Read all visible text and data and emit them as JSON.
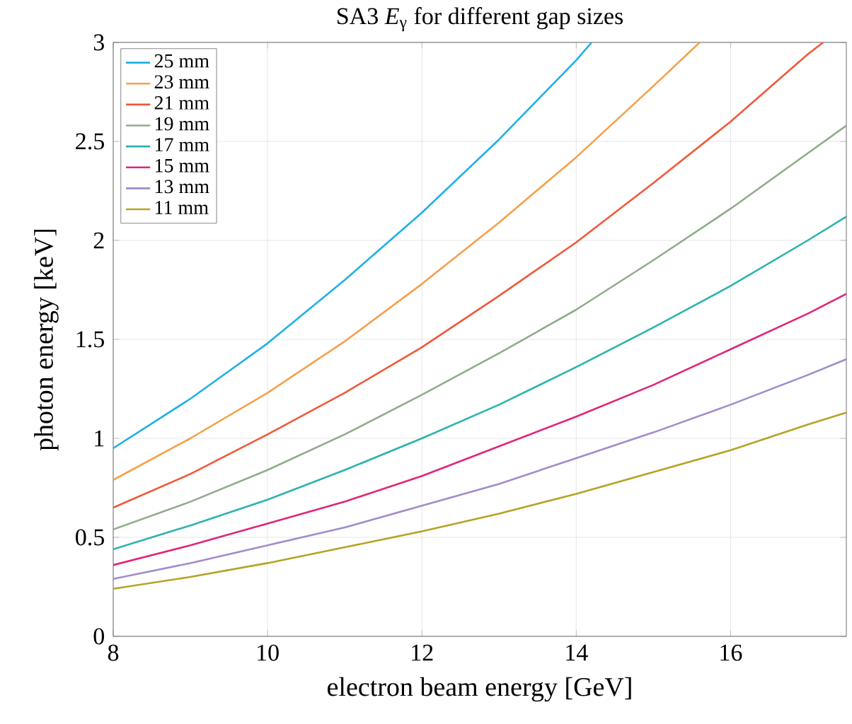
{
  "chart_data": {
    "type": "line",
    "title": "SA3 *E*$_{γ}$ for different gap sizes",
    "xlabel": "electron beam energy [GeV]",
    "ylabel": "photon energy [keV]",
    "xlim": [
      8,
      17.5
    ],
    "xticks": [
      8,
      10,
      12,
      14,
      16
    ],
    "ylim": [
      0,
      3
    ],
    "yticks": [
      0,
      0.5,
      1,
      1.5,
      2,
      2.5,
      3
    ],
    "grid": true,
    "legend": "top left",
    "marker": "none",
    "line_style": "solid",
    "series": [
      {
        "name": "25 mm",
        "color": "#1fb0e6",
        "x": [
          8,
          9,
          10,
          11,
          12,
          13,
          14,
          14.2
        ],
        "values": [
          0.95,
          1.2,
          1.48,
          1.8,
          2.14,
          2.51,
          2.91,
          3.0
        ]
      },
      {
        "name": "23 mm",
        "color": "#f5a04a",
        "x": [
          8,
          9,
          10,
          11,
          12,
          13,
          14,
          15,
          15.6
        ],
        "values": [
          0.79,
          1.0,
          1.23,
          1.49,
          1.78,
          2.09,
          2.42,
          2.78,
          3.0
        ]
      },
      {
        "name": "21 mm",
        "color": "#ee5a3a",
        "x": [
          8,
          9,
          10,
          11,
          12,
          13,
          14,
          15,
          16,
          17,
          17.2
        ],
        "values": [
          0.65,
          0.82,
          1.02,
          1.23,
          1.46,
          1.72,
          1.99,
          2.29,
          2.6,
          2.94,
          3.0
        ]
      },
      {
        "name": "19 mm",
        "color": "#8fad8a",
        "x": [
          8,
          9,
          10,
          11,
          12,
          13,
          14,
          15,
          16,
          17,
          17.5
        ],
        "values": [
          0.54,
          0.68,
          0.84,
          1.02,
          1.22,
          1.43,
          1.65,
          1.9,
          2.16,
          2.44,
          2.58
        ]
      },
      {
        "name": "17 mm",
        "color": "#2cb3ad",
        "x": [
          8,
          9,
          10,
          11,
          12,
          13,
          14,
          15,
          16,
          17,
          17.5
        ],
        "values": [
          0.44,
          0.56,
          0.69,
          0.84,
          1.0,
          1.17,
          1.36,
          1.56,
          1.77,
          2.0,
          2.12
        ]
      },
      {
        "name": "15 mm",
        "color": "#e0257a",
        "x": [
          8,
          9,
          10,
          11,
          12,
          13,
          14,
          15,
          16,
          17,
          17.5
        ],
        "values": [
          0.36,
          0.46,
          0.57,
          0.68,
          0.81,
          0.96,
          1.11,
          1.27,
          1.45,
          1.63,
          1.73
        ]
      },
      {
        "name": "13 mm",
        "color": "#a08ccb",
        "x": [
          8,
          9,
          10,
          11,
          12,
          13,
          14,
          15,
          16,
          17,
          17.5
        ],
        "values": [
          0.29,
          0.37,
          0.46,
          0.55,
          0.66,
          0.77,
          0.9,
          1.03,
          1.17,
          1.32,
          1.4
        ]
      },
      {
        "name": "11 mm",
        "color": "#b5a324",
        "x": [
          8,
          9,
          10,
          11,
          12,
          13,
          14,
          15,
          16,
          17,
          17.5
        ],
        "values": [
          0.24,
          0.3,
          0.37,
          0.45,
          0.53,
          0.62,
          0.72,
          0.83,
          0.94,
          1.07,
          1.13
        ]
      }
    ]
  }
}
